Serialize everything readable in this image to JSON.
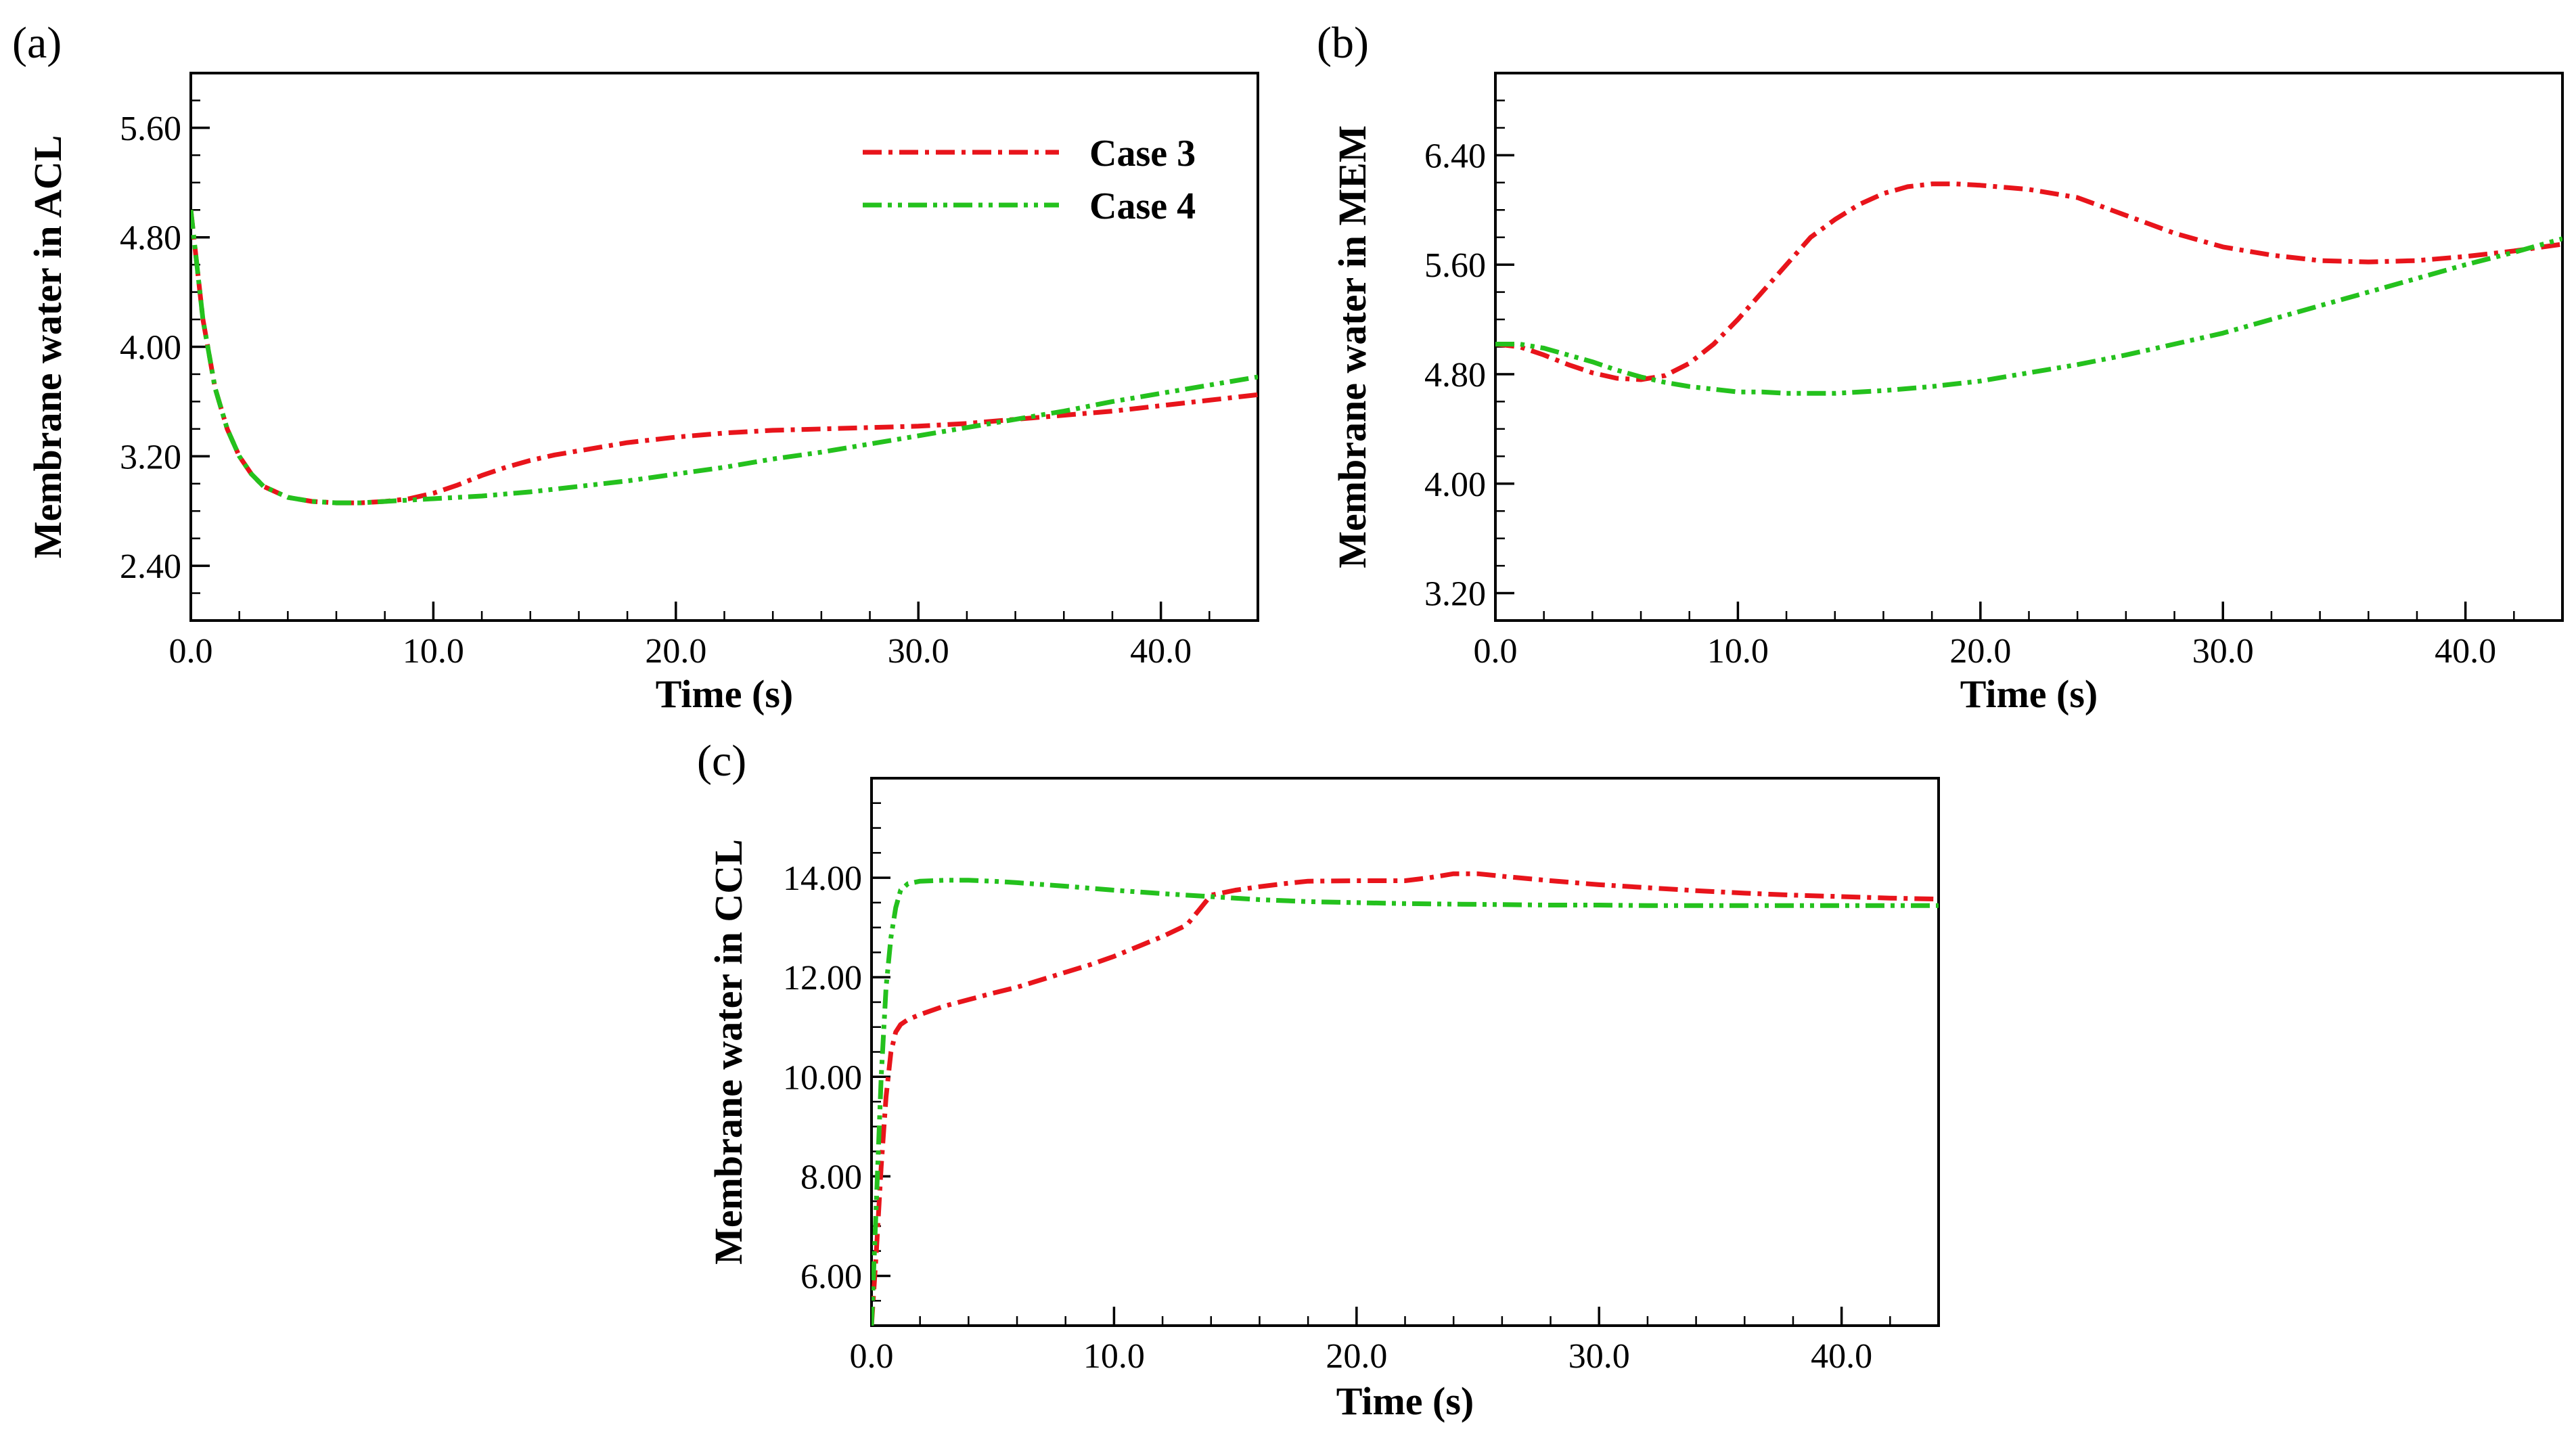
{
  "legend": {
    "entries": [
      {
        "name": "Case 3",
        "color": "#e8141b"
      },
      {
        "name": "Case 4",
        "color": "#24c11d"
      }
    ]
  },
  "chart_data": [
    {
      "type": "line",
      "panel_label": "(a)",
      "xlabel": "Time (s)",
      "ylabel": "Membrane water in ACL",
      "xlim": [
        0,
        44
      ],
      "ylim": [
        2.0,
        6.0
      ],
      "xticks": [
        0,
        10,
        20,
        30,
        40
      ],
      "xtick_labels": [
        "0.0",
        "10.0",
        "20.0",
        "30.0",
        "40.0"
      ],
      "yticks": [
        2.4,
        3.2,
        4.0,
        4.8,
        5.6
      ],
      "ytick_labels": [
        "2.40",
        "3.20",
        "4.00",
        "4.80",
        "5.60"
      ],
      "legend_position": "top-right",
      "series": [
        {
          "name": "Case 3",
          "color": "#e8141b",
          "x": [
            0,
            0.5,
            1,
            1.5,
            2,
            2.5,
            3,
            4,
            5,
            6,
            7,
            8,
            9,
            10,
            11,
            12,
            13,
            14,
            15,
            16,
            18,
            20,
            22,
            24,
            26,
            28,
            30,
            32,
            34,
            36,
            38,
            40,
            42,
            44
          ],
          "y": [
            5.0,
            4.2,
            3.7,
            3.4,
            3.2,
            3.07,
            2.98,
            2.9,
            2.87,
            2.86,
            2.86,
            2.87,
            2.89,
            2.93,
            2.99,
            3.06,
            3.12,
            3.17,
            3.21,
            3.24,
            3.3,
            3.34,
            3.37,
            3.39,
            3.4,
            3.41,
            3.42,
            3.44,
            3.47,
            3.5,
            3.53,
            3.57,
            3.61,
            3.65
          ]
        },
        {
          "name": "Case 4",
          "color": "#24c11d",
          "x": [
            0,
            0.5,
            1,
            1.5,
            2,
            2.5,
            3,
            4,
            5,
            6,
            7,
            8,
            9,
            10,
            12,
            14,
            16,
            18,
            20,
            22,
            24,
            26,
            28,
            30,
            32,
            34,
            36,
            38,
            40,
            42,
            44
          ],
          "y": [
            5.0,
            4.2,
            3.7,
            3.4,
            3.2,
            3.07,
            2.98,
            2.9,
            2.87,
            2.86,
            2.86,
            2.87,
            2.88,
            2.89,
            2.91,
            2.94,
            2.98,
            3.02,
            3.07,
            3.12,
            3.18,
            3.23,
            3.29,
            3.35,
            3.41,
            3.47,
            3.53,
            3.6,
            3.66,
            3.72,
            3.78
          ]
        }
      ]
    },
    {
      "type": "line",
      "panel_label": "(b)",
      "xlabel": "Time (s)",
      "ylabel": "Membrane water in MEM",
      "xlim": [
        0,
        44
      ],
      "ylim": [
        3.0,
        7.0
      ],
      "xticks": [
        0,
        10,
        20,
        30,
        40
      ],
      "xtick_labels": [
        "0.0",
        "10.0",
        "20.0",
        "30.0",
        "40.0"
      ],
      "yticks": [
        3.2,
        4.0,
        4.8,
        5.6,
        6.4
      ],
      "ytick_labels": [
        "3.20",
        "4.00",
        "4.80",
        "5.60",
        "6.40"
      ],
      "series": [
        {
          "name": "Case 3",
          "color": "#e8141b",
          "x": [
            0,
            1,
            2,
            3,
            4,
            5,
            6,
            7,
            8,
            9,
            10,
            11,
            12,
            13,
            14,
            15,
            16,
            17,
            18,
            19,
            20,
            22,
            24,
            26,
            28,
            30,
            32,
            34,
            36,
            38,
            40,
            42,
            44
          ],
          "y": [
            5.02,
            5.0,
            4.94,
            4.87,
            4.81,
            4.77,
            4.76,
            4.79,
            4.88,
            5.02,
            5.2,
            5.4,
            5.6,
            5.8,
            5.93,
            6.04,
            6.12,
            6.17,
            6.19,
            6.19,
            6.18,
            6.15,
            6.09,
            5.96,
            5.83,
            5.73,
            5.67,
            5.63,
            5.62,
            5.63,
            5.66,
            5.7,
            5.75
          ]
        },
        {
          "name": "Case 4",
          "color": "#24c11d",
          "x": [
            0,
            1,
            2,
            3,
            4,
            5,
            6,
            7,
            8,
            9,
            10,
            11,
            12,
            13,
            14,
            16,
            18,
            20,
            22,
            24,
            26,
            28,
            30,
            32,
            34,
            36,
            38,
            40,
            42,
            44
          ],
          "y": [
            5.02,
            5.02,
            4.99,
            4.94,
            4.89,
            4.83,
            4.78,
            4.74,
            4.71,
            4.69,
            4.67,
            4.67,
            4.66,
            4.66,
            4.66,
            4.68,
            4.71,
            4.75,
            4.81,
            4.87,
            4.94,
            5.02,
            5.1,
            5.2,
            5.3,
            5.4,
            5.5,
            5.6,
            5.69,
            5.79
          ]
        }
      ]
    },
    {
      "type": "line",
      "panel_label": "(c)",
      "xlabel": "Time (s)",
      "ylabel": "Membrane water in CCL",
      "xlim": [
        0,
        44
      ],
      "ylim": [
        5.0,
        16.0
      ],
      "xticks": [
        0,
        10,
        20,
        30,
        40
      ],
      "xtick_labels": [
        "0.0",
        "10.0",
        "20.0",
        "30.0",
        "40.0"
      ],
      "yticks": [
        6,
        8,
        10,
        12,
        14
      ],
      "ytick_labels": [
        "6.00",
        "8.00",
        "10.00",
        "12.00",
        "14.00"
      ],
      "series": [
        {
          "name": "Case 3",
          "color": "#e8141b",
          "x": [
            0,
            0.2,
            0.4,
            0.6,
            0.8,
            1.0,
            1.2,
            1.5,
            2,
            3,
            4,
            5,
            6,
            7,
            8,
            9,
            10,
            11,
            12,
            13,
            13.5,
            14,
            15,
            16,
            17,
            18,
            20,
            22,
            23,
            24,
            25,
            26,
            28,
            30,
            32,
            34,
            36,
            38,
            40,
            42,
            44
          ],
          "y": [
            5.0,
            6.5,
            8.2,
            9.6,
            10.5,
            10.9,
            11.05,
            11.15,
            11.25,
            11.42,
            11.55,
            11.68,
            11.8,
            11.95,
            12.1,
            12.25,
            12.42,
            12.62,
            12.82,
            13.05,
            13.35,
            13.65,
            13.75,
            13.82,
            13.88,
            13.93,
            13.94,
            13.94,
            14.0,
            14.08,
            14.08,
            14.03,
            13.94,
            13.86,
            13.8,
            13.74,
            13.69,
            13.65,
            13.62,
            13.59,
            13.57
          ]
        },
        {
          "name": "Case 4",
          "color": "#24c11d",
          "x": [
            0,
            0.2,
            0.4,
            0.6,
            0.8,
            1.0,
            1.2,
            1.5,
            2,
            3,
            4,
            5,
            6,
            8,
            10,
            12,
            14,
            16,
            18,
            20,
            22,
            24,
            26,
            28,
            30,
            32,
            34,
            36,
            38,
            40,
            42,
            44
          ],
          "y": [
            5.0,
            7.5,
            10.0,
            11.8,
            12.8,
            13.4,
            13.75,
            13.88,
            13.93,
            13.95,
            13.95,
            13.93,
            13.9,
            13.83,
            13.75,
            13.68,
            13.62,
            13.56,
            13.52,
            13.5,
            13.48,
            13.47,
            13.46,
            13.45,
            13.45,
            13.44,
            13.44,
            13.44,
            13.44,
            13.44,
            13.44,
            13.44
          ]
        }
      ]
    }
  ]
}
